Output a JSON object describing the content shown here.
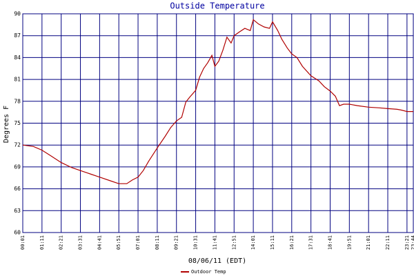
{
  "chart_data": {
    "type": "line",
    "title": "Outside Temperature",
    "xlabel": "08/06/11 (EDT)",
    "ylabel": "Degrees F",
    "x": [
      "00:01",
      "00:40",
      "01:11",
      "01:40",
      "02:21",
      "03:00",
      "03:31",
      "04:10",
      "04:41",
      "05:20",
      "05:51",
      "06:20",
      "06:40",
      "07:01",
      "07:20",
      "07:40",
      "08:11",
      "08:40",
      "09:00",
      "09:21",
      "09:40",
      "09:55",
      "10:10",
      "10:31",
      "10:45",
      "11:00",
      "11:15",
      "11:30",
      "11:41",
      "11:55",
      "12:10",
      "12:25",
      "12:40",
      "12:51",
      "13:10",
      "13:30",
      "13:50",
      "14:01",
      "14:20",
      "14:40",
      "15:00",
      "15:11",
      "15:30",
      "15:45",
      "16:05",
      "16:21",
      "16:40",
      "17:00",
      "17:31",
      "18:00",
      "18:20",
      "18:41",
      "19:00",
      "19:15",
      "19:30",
      "19:51",
      "20:20",
      "21:01",
      "21:40",
      "22:11",
      "22:45",
      "23:00",
      "23:21",
      "23:44"
    ],
    "series": [
      {
        "name": "Outdoor Temp",
        "color": "#b00000",
        "values": [
          72.0,
          71.8,
          71.3,
          70.6,
          69.6,
          68.9,
          68.5,
          68.0,
          67.6,
          67.1,
          66.7,
          66.7,
          67.2,
          67.6,
          68.5,
          69.8,
          71.6,
          73.2,
          74.4,
          75.3,
          75.8,
          77.9,
          78.6,
          79.5,
          81.3,
          82.5,
          83.3,
          84.3,
          82.8,
          83.5,
          85.0,
          86.8,
          86.0,
          87.0,
          87.5,
          88.0,
          87.7,
          89.2,
          88.6,
          88.2,
          88.0,
          88.9,
          87.7,
          86.5,
          85.3,
          84.5,
          84.0,
          82.8,
          81.5,
          80.8,
          80.0,
          79.4,
          78.7,
          77.4,
          77.6,
          77.6,
          77.4,
          77.2,
          77.1,
          77.0,
          76.9,
          76.8,
          76.6,
          76.6
        ]
      }
    ],
    "xlim": [
      "00:01",
      "23:44"
    ],
    "xticks": [
      "00:01",
      "01:11",
      "02:21",
      "03:31",
      "04:41",
      "05:51",
      "07:01",
      "08:11",
      "09:21",
      "10:31",
      "11:41",
      "12:51",
      "14:01",
      "15:11",
      "16:21",
      "17:31",
      "18:41",
      "19:51",
      "21:01",
      "22:11",
      "23:21",
      "23:44"
    ],
    "ylim": [
      60,
      90
    ],
    "yticks": [
      60,
      63,
      66,
      69,
      72,
      75,
      78,
      81,
      84,
      87,
      90
    ],
    "grid": true,
    "legend": "bottom"
  }
}
